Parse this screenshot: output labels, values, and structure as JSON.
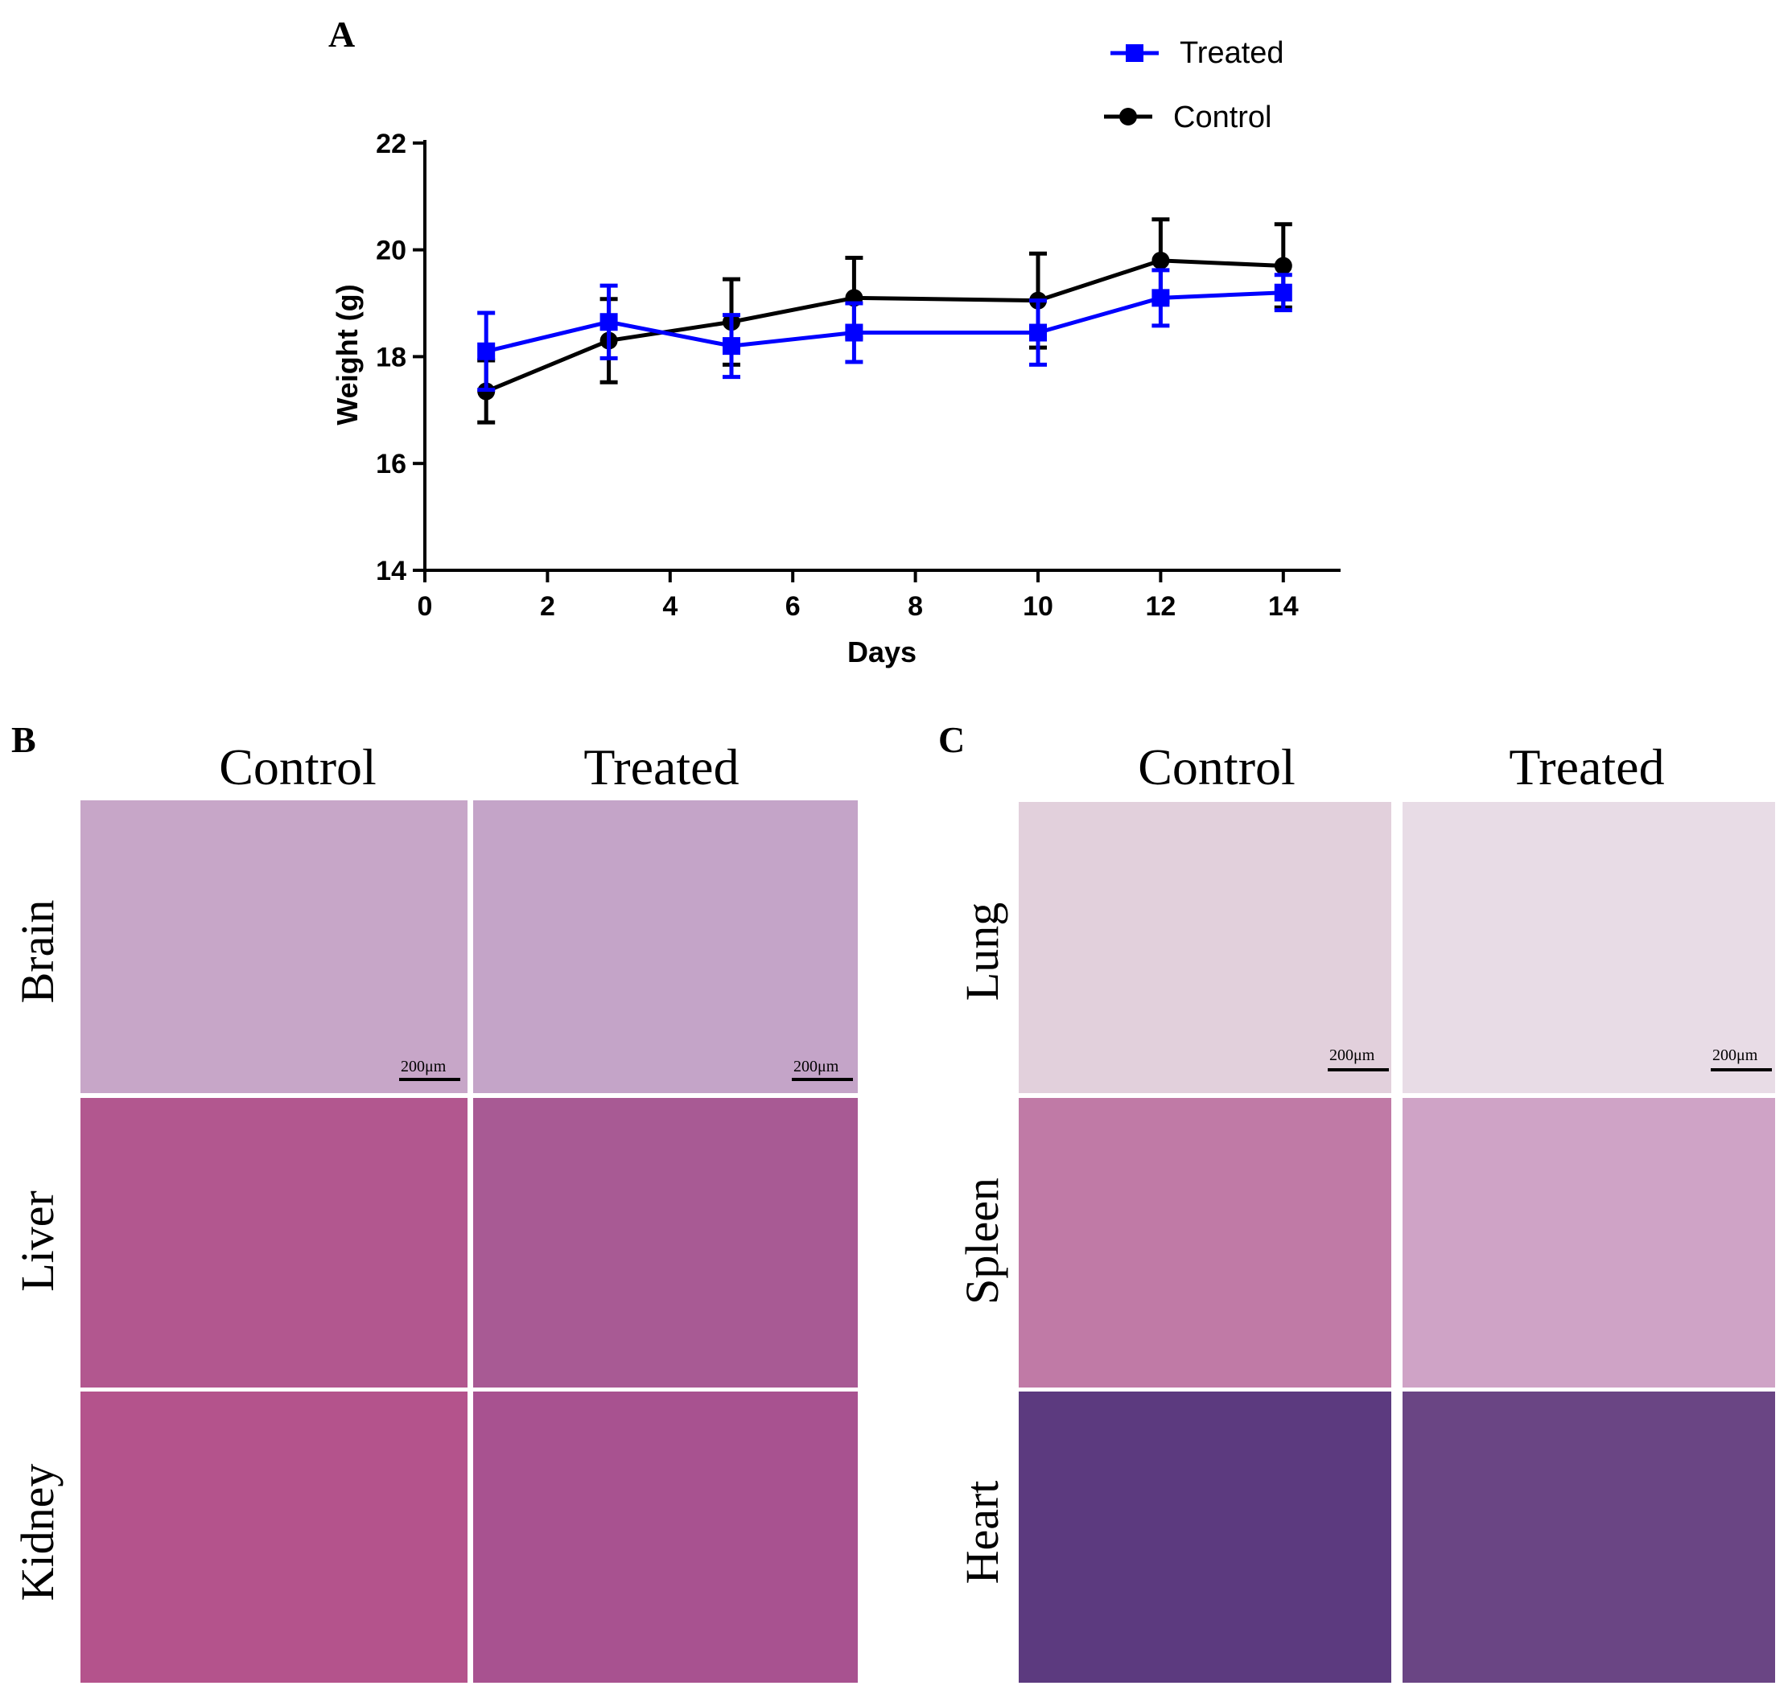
{
  "panel_a": {
    "letter": "A",
    "legend": [
      {
        "label": "Treated",
        "color": "#0000ff",
        "marker": "square"
      },
      {
        "label": "Control",
        "color": "#000000",
        "marker": "circle"
      }
    ]
  },
  "chart_data": {
    "type": "line",
    "xlabel": "Days",
    "ylabel": "Weight (g)",
    "xlim": [
      0,
      15
    ],
    "ylim": [
      14,
      22
    ],
    "x_ticks": [
      "0",
      "2",
      "4",
      "6",
      "8",
      "10",
      "12",
      "14"
    ],
    "y_ticks": [
      "14",
      "16",
      "18",
      "20",
      "22"
    ],
    "grid": false,
    "legend_position": "top-right",
    "error_bars": true,
    "series": [
      {
        "name": "Treated",
        "color": "#0000ff",
        "marker": "square",
        "x": [
          1,
          3,
          5,
          7,
          10,
          12,
          14
        ],
        "y": [
          18.1,
          18.65,
          18.2,
          18.45,
          18.45,
          19.1,
          19.2
        ],
        "err": [
          0.72,
          0.68,
          0.58,
          0.55,
          0.6,
          0.52,
          0.33
        ]
      },
      {
        "name": "Control",
        "color": "#000000",
        "marker": "circle",
        "x": [
          1,
          3,
          5,
          7,
          10,
          12,
          14
        ],
        "y": [
          17.35,
          18.3,
          18.65,
          19.1,
          19.05,
          19.8,
          19.7
        ],
        "err": [
          0.58,
          0.78,
          0.8,
          0.75,
          0.88,
          0.77,
          0.78
        ]
      }
    ]
  },
  "panel_b": {
    "letter": "B",
    "columns": [
      "Control",
      "Treated"
    ],
    "rows": [
      "Brain",
      "Liver",
      "Kidney"
    ],
    "scale_labels": [
      "200μm",
      "200μm"
    ]
  },
  "panel_c": {
    "letter": "C",
    "columns": [
      "Control",
      "Treated"
    ],
    "rows": [
      "Lung",
      "Spleen",
      "Heart"
    ],
    "scale_labels": [
      "200μm",
      "200μm"
    ]
  },
  "micrograph_tones": {
    "Brain": [
      "#c7a6c8",
      "#c4a4c8"
    ],
    "Liver": [
      "#b2578f",
      "#a85a94"
    ],
    "Kidney": [
      "#b4538c",
      "#a85290"
    ],
    "Lung": [
      "#e2d0dc",
      "#e8dce6"
    ],
    "Spleen": [
      "#c07aa6",
      "#cfa3c6"
    ],
    "Heart": [
      "#5c3a7f",
      "#6a4584"
    ]
  }
}
